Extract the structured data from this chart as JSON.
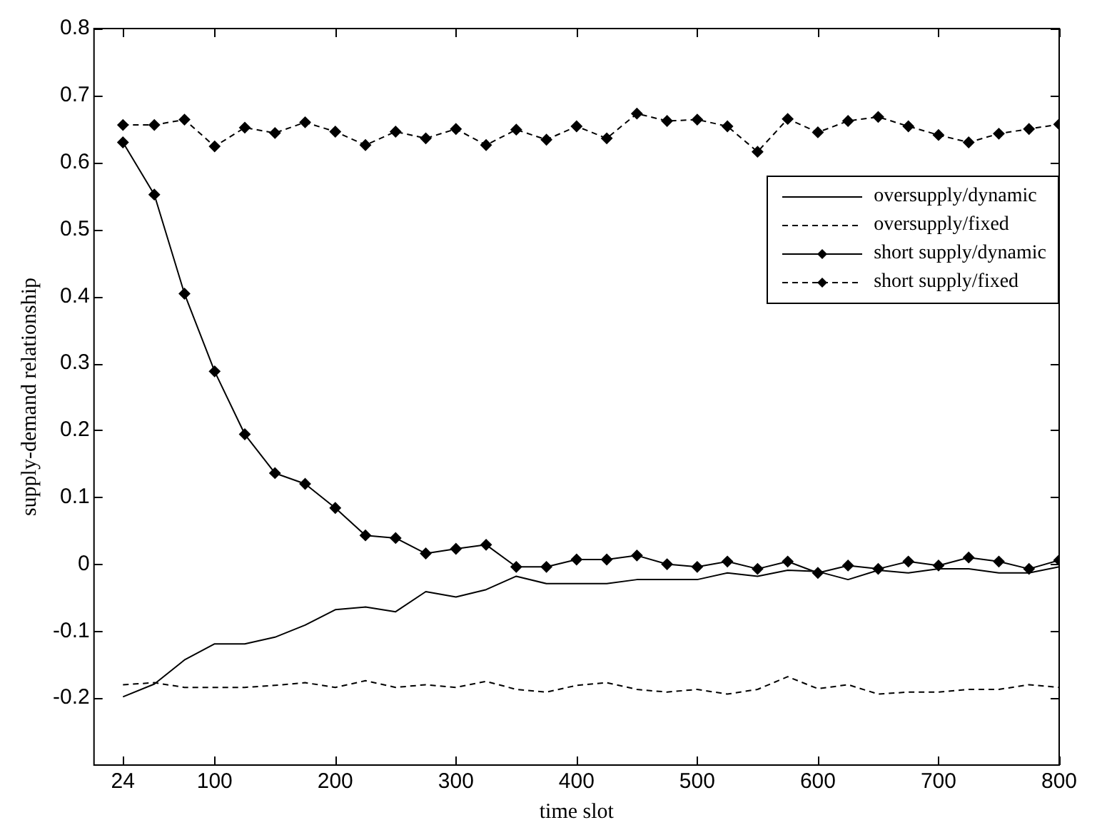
{
  "chart_data": {
    "type": "line",
    "xlabel": "time slot",
    "ylabel": "supply-demand relationship",
    "x": [
      24,
      50,
      75,
      100,
      125,
      150,
      175,
      200,
      225,
      250,
      275,
      300,
      325,
      350,
      375,
      400,
      425,
      450,
      475,
      500,
      525,
      550,
      575,
      600,
      625,
      650,
      675,
      700,
      725,
      750,
      775,
      800
    ],
    "xlim": [
      0,
      800
    ],
    "xticks": [
      24,
      100,
      200,
      300,
      400,
      500,
      600,
      700,
      800
    ],
    "ylim": [
      -0.3,
      0.8
    ],
    "yticks": [
      -0.2,
      -0.1,
      0,
      0.1,
      0.2,
      0.3,
      0.4,
      0.5,
      0.6,
      0.7,
      0.8
    ],
    "grid": false,
    "legend": "right",
    "series": [
      {
        "name": "oversupply/dynamic",
        "color": "#000000",
        "line_style": "solid",
        "marker": "none",
        "values": [
          -0.198,
          -0.179,
          -0.143,
          -0.119,
          -0.119,
          -0.109,
          -0.091,
          -0.068,
          -0.064,
          -0.071,
          -0.041,
          -0.049,
          -0.038,
          -0.018,
          -0.029,
          -0.029,
          -0.029,
          -0.023,
          -0.023,
          -0.023,
          -0.013,
          -0.018,
          -0.009,
          -0.011,
          -0.023,
          -0.009,
          -0.013,
          -0.007,
          -0.007,
          -0.013,
          -0.013,
          -0.004
        ]
      },
      {
        "name": "oversupply/fixed",
        "color": "#000000",
        "line_style": "dashed",
        "marker": "none",
        "values": [
          -0.18,
          -0.177,
          -0.184,
          -0.184,
          -0.184,
          -0.181,
          -0.177,
          -0.184,
          -0.174,
          -0.184,
          -0.18,
          -0.184,
          -0.175,
          -0.187,
          -0.191,
          -0.181,
          -0.177,
          -0.187,
          -0.191,
          -0.187,
          -0.194,
          -0.187,
          -0.168,
          -0.186,
          -0.18,
          -0.194,
          -0.191,
          -0.191,
          -0.187,
          -0.187,
          -0.18,
          -0.184
        ]
      },
      {
        "name": "short supply/dynamic",
        "color": "#000000",
        "line_style": "solid",
        "marker": "diamond",
        "values": [
          0.63,
          0.552,
          0.404,
          0.288,
          0.194,
          0.136,
          0.12,
          0.084,
          0.043,
          0.039,
          0.016,
          0.023,
          0.029,
          -0.004,
          -0.004,
          0.007,
          0.007,
          0.013,
          0,
          -0.004,
          0.004,
          -0.007,
          0.004,
          -0.013,
          -0.002,
          -0.007,
          0.004,
          -0.002,
          0.01,
          0.004,
          -0.007,
          0.006
        ]
      },
      {
        "name": "short supply/fixed",
        "color": "#000000",
        "line_style": "dashed",
        "marker": "diamond",
        "values": [
          0.656,
          0.656,
          0.664,
          0.624,
          0.652,
          0.644,
          0.66,
          0.646,
          0.626,
          0.646,
          0.636,
          0.65,
          0.626,
          0.649,
          0.634,
          0.654,
          0.636,
          0.673,
          0.662,
          0.664,
          0.654,
          0.616,
          0.665,
          0.645,
          0.662,
          0.668,
          0.654,
          0.641,
          0.63,
          0.643,
          0.65,
          0.657
        ]
      }
    ]
  }
}
